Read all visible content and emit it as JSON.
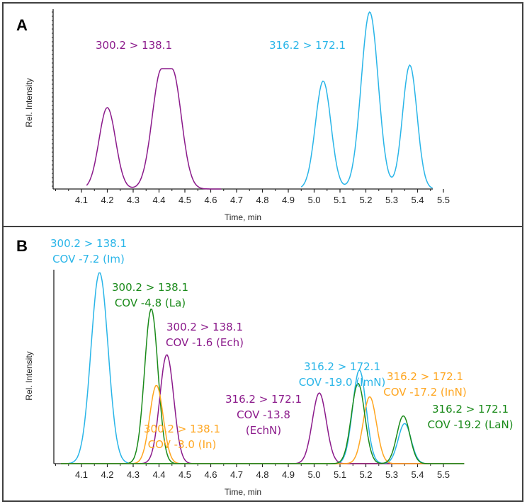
{
  "chart_data": [
    {
      "type": "line",
      "panel_label": "A",
      "xlabel": "Time, min",
      "ylabel": "Rel. Intensity",
      "xlim": [
        4.0,
        5.6
      ],
      "ylim": [
        0,
        1.0
      ],
      "xticks": [
        "4.1",
        "4.2",
        "4.3",
        "4.4",
        "4.5",
        "4.6",
        "4.7",
        "4.8",
        "4.9",
        "5.0",
        "5.1",
        "5.2",
        "5.3",
        "5.4",
        "5.5"
      ],
      "series": [
        {
          "name": "300.2 > 138.1",
          "color": "#8b1a8b",
          "range": [
            4.12,
            4.64
          ],
          "peaks": [
            {
              "t": 4.2,
              "h": 0.46,
              "w": 0.032
            },
            {
              "t": 4.43,
              "h": 0.68,
              "w": 0.036,
              "flat": 0.04
            }
          ]
        },
        {
          "name": "316.2 > 172.1",
          "color": "#29b5e8",
          "range": [
            4.95,
            5.46
          ],
          "peaks": [
            {
              "t": 5.035,
              "h": 0.61,
              "w": 0.03
            },
            {
              "t": 5.215,
              "h": 1.0,
              "w": 0.033
            },
            {
              "t": 5.37,
              "h": 0.7,
              "w": 0.028
            }
          ]
        }
      ],
      "annotations": [
        {
          "lines": [
            "300.2 > 138.1"
          ],
          "color": "#8b1a8b"
        },
        {
          "lines": [
            "316.2 > 172.1"
          ],
          "color": "#29b5e8"
        }
      ]
    },
    {
      "type": "line",
      "panel_label": "B",
      "xlabel": "Time, min",
      "ylabel": "Rel. Intensity",
      "xlim": [
        4.0,
        5.6
      ],
      "ylim": [
        0,
        1.0
      ],
      "xticks": [
        "4.1",
        "4.2",
        "4.3",
        "4.4",
        "4.5",
        "4.6",
        "4.7",
        "4.8",
        "4.9",
        "5.0",
        "5.1",
        "5.2",
        "5.3",
        "5.4",
        "5.5"
      ],
      "series": [
        {
          "name": "300.2 > 138.1 COV -7.2 (Im)",
          "color": "#29b5e8",
          "peaks": [
            {
              "t": 4.17,
              "h": 1.0,
              "w": 0.033
            }
          ]
        },
        {
          "name": "300.2 > 138.1 COV -4.8 (La)",
          "color": "#1a8a1a",
          "peaks": [
            {
              "t": 4.37,
              "h": 0.81,
              "w": 0.026
            }
          ]
        },
        {
          "name": "300.2 > 138.1 COV -1.6 (Ech)",
          "color": "#8b1a8b",
          "peaks": [
            {
              "t": 4.43,
              "h": 0.57,
              "w": 0.027
            }
          ]
        },
        {
          "name": "300.2 > 138.1 COV -3.0 (In)",
          "color": "#ffa620",
          "peaks": [
            {
              "t": 4.39,
              "h": 0.41,
              "w": 0.026
            }
          ]
        },
        {
          "name": "316.2 > 172.1 COV -13.8 (EchN)",
          "color": "#8b1a8b",
          "peaks": [
            {
              "t": 5.02,
              "h": 0.37,
              "w": 0.027
            }
          ]
        },
        {
          "name": "316.2 > 172.1 COV -19.0 (ImN)",
          "color": "#29b5e8",
          "peaks": [
            {
              "t": 5.175,
              "h": 0.49,
              "w": 0.026
            },
            {
              "t": 5.35,
              "h": 0.21,
              "w": 0.025
            }
          ]
        },
        {
          "name": "316.2 > 172.1 COV -17.2 (InN)",
          "color": "#ffa620",
          "peaks": [
            {
              "t": 5.215,
              "h": 0.35,
              "w": 0.026
            }
          ]
        },
        {
          "name": "316.2 > 172.1 COV -19.2 (LaN)",
          "color": "#1a8a1a",
          "peaks": [
            {
              "t": 5.17,
              "h": 0.42,
              "w": 0.026
            },
            {
              "t": 5.345,
              "h": 0.25,
              "w": 0.025
            }
          ]
        }
      ],
      "annotations": [
        {
          "lines": [
            "300.2 > 138.1",
            "COV -7.2 (Im)"
          ],
          "color": "#29b5e8"
        },
        {
          "lines": [
            "300.2 > 138.1",
            "COV -4.8 (La)"
          ],
          "color": "#1a8a1a"
        },
        {
          "lines": [
            "300.2 > 138.1",
            "COV -1.6 (Ech)"
          ],
          "color": "#8b1a8b"
        },
        {
          "lines": [
            "300.2 > 138.1",
            "COV -3.0 (In)"
          ],
          "color": "#ffa620"
        },
        {
          "lines": [
            "316.2 > 172.1",
            "COV -13.8",
            "(EchN)"
          ],
          "color": "#8b1a8b"
        },
        {
          "lines": [
            "316.2 > 172.1",
            "COV -19.0 (ImN)"
          ],
          "color": "#29b5e8"
        },
        {
          "lines": [
            "316.2 > 172.1",
            "COV -17.2 (InN)"
          ],
          "color": "#ffa620"
        },
        {
          "lines": [
            "316.2 > 172.1",
            "COV -19.2 (LaN)"
          ],
          "color": "#1a8a1a"
        }
      ]
    }
  ]
}
